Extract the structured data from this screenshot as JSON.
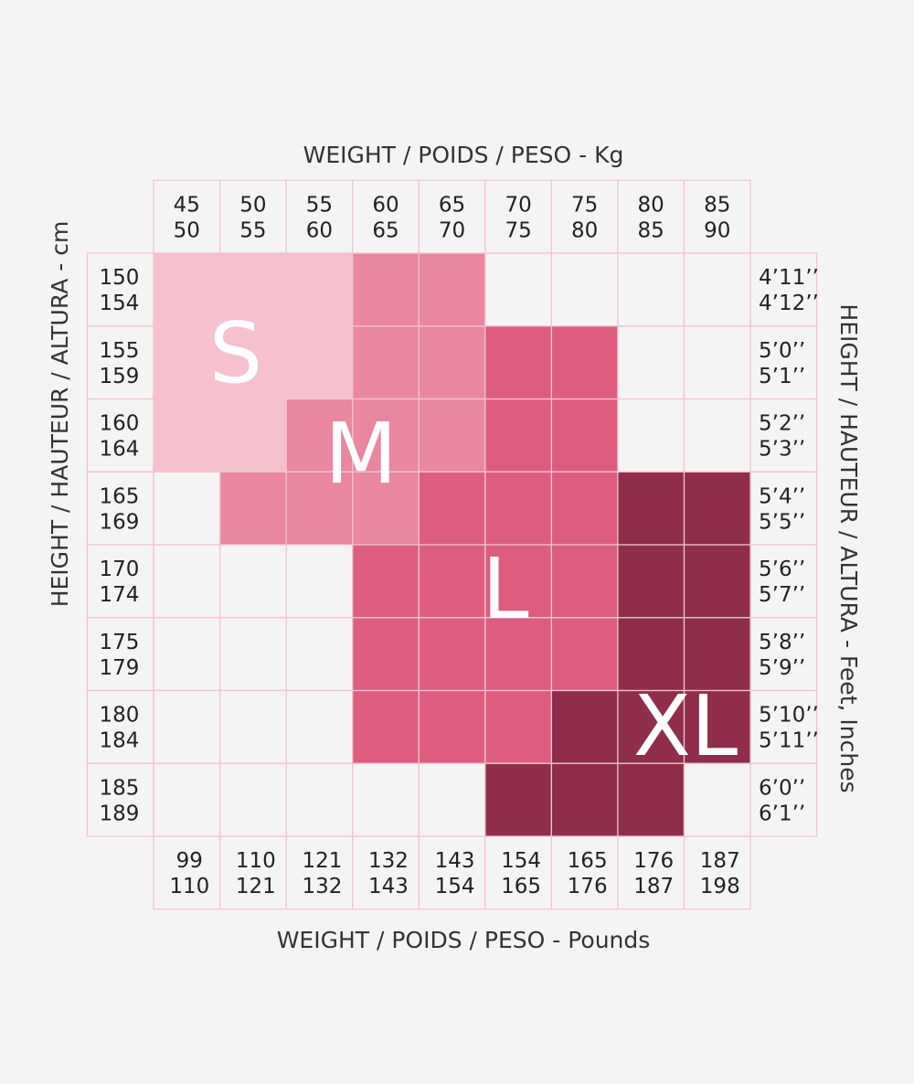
{
  "titles": {
    "top": "WEIGHT / POIDS / PESO - Kg",
    "bottom": "WEIGHT / POIDS / PESO - Pounds",
    "left": "HEIGHT / HAUTEUR / ALTURA - cm",
    "right": "HEIGHT / HAUTEUR / ALTURA - Feet, Inches"
  },
  "weight_kg": [
    [
      "45",
      "50"
    ],
    [
      "50",
      "55"
    ],
    [
      "55",
      "60"
    ],
    [
      "60",
      "65"
    ],
    [
      "65",
      "70"
    ],
    [
      "70",
      "75"
    ],
    [
      "75",
      "80"
    ],
    [
      "80",
      "85"
    ],
    [
      "85",
      "90"
    ]
  ],
  "weight_lb": [
    [
      "99",
      "110"
    ],
    [
      "110",
      "121"
    ],
    [
      "121",
      "132"
    ],
    [
      "132",
      "143"
    ],
    [
      "143",
      "154"
    ],
    [
      "154",
      "165"
    ],
    [
      "165",
      "176"
    ],
    [
      "176",
      "187"
    ],
    [
      "187",
      "198"
    ]
  ],
  "height_cm": [
    [
      "150",
      "154"
    ],
    [
      "155",
      "159"
    ],
    [
      "160",
      "164"
    ],
    [
      "165",
      "169"
    ],
    [
      "170",
      "174"
    ],
    [
      "175",
      "179"
    ],
    [
      "180",
      "184"
    ],
    [
      "185",
      "189"
    ]
  ],
  "height_ft": [
    [
      "4’11’’",
      "4’12’’"
    ],
    [
      "5’0’’",
      "5’1’’"
    ],
    [
      "5’2’’",
      "5’3’’"
    ],
    [
      "5’4’’",
      "5’5’’"
    ],
    [
      "5’6’’",
      "5’7’’"
    ],
    [
      "5’8’’",
      "5’9’’"
    ],
    [
      "5’10’’",
      "5’11’’"
    ],
    [
      "6’0’’",
      "6’1’’"
    ]
  ],
  "sizes": [
    "S",
    "M",
    "L",
    "XL"
  ]
}
